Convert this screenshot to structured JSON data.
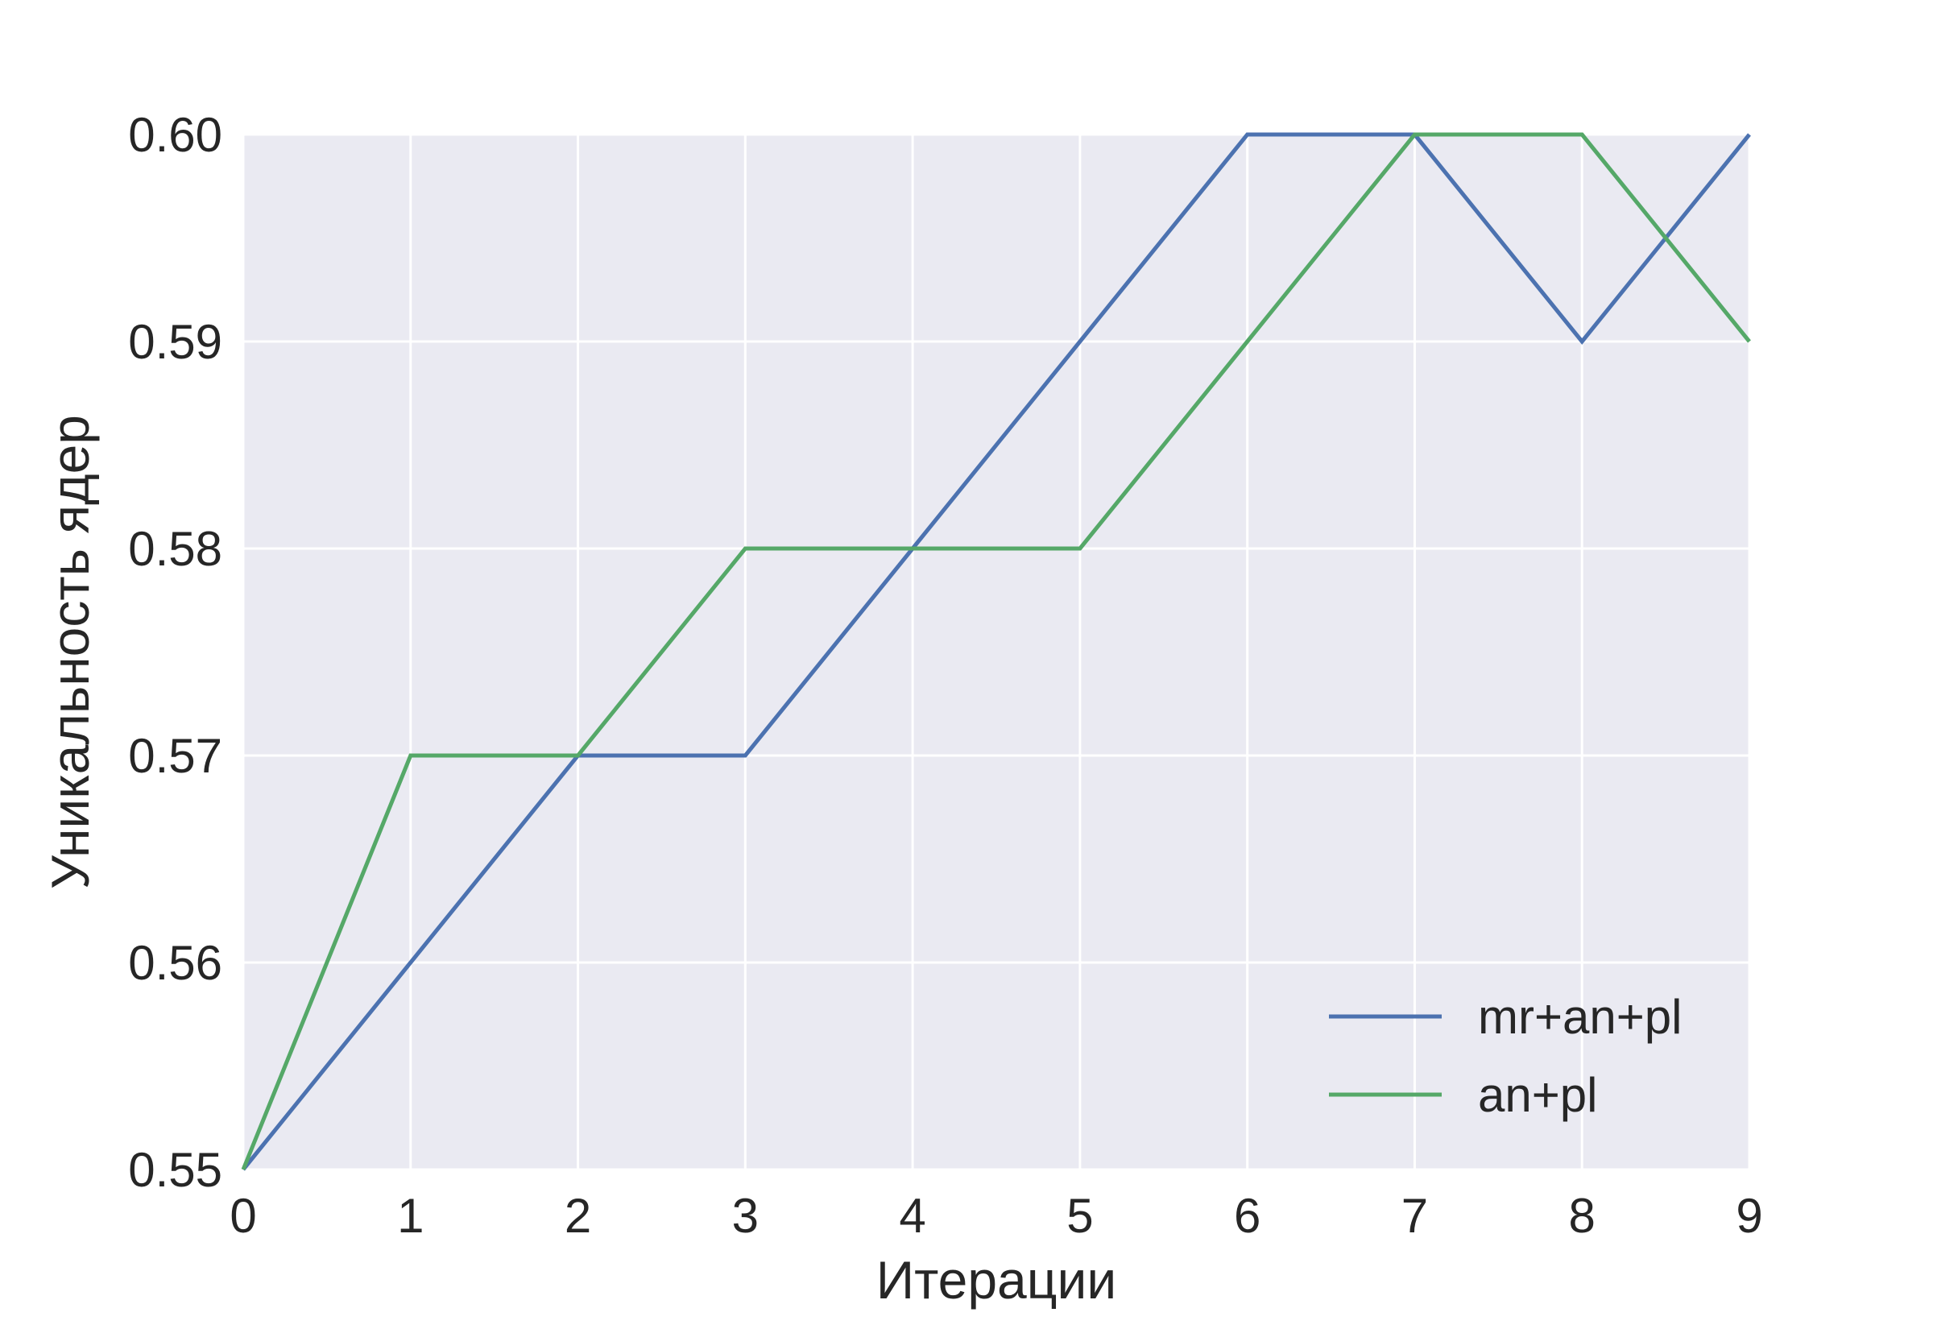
{
  "chart_data": {
    "type": "line",
    "title": "",
    "xlabel": "Итерации",
    "ylabel": "Уникальность ядер",
    "x": [
      0,
      1,
      2,
      3,
      4,
      5,
      6,
      7,
      8,
      9
    ],
    "xlim": [
      0,
      9
    ],
    "ylim": [
      0.55,
      0.6
    ],
    "xticks": [
      "0",
      "1",
      "2",
      "3",
      "4",
      "5",
      "6",
      "7",
      "8",
      "9"
    ],
    "yticks": [
      {
        "value": 0.55,
        "label": "0.55"
      },
      {
        "value": 0.56,
        "label": "0.56"
      },
      {
        "value": 0.57,
        "label": "0.57"
      },
      {
        "value": 0.58,
        "label": "0.58"
      },
      {
        "value": 0.59,
        "label": "0.59"
      },
      {
        "value": 0.6,
        "label": "0.60"
      }
    ],
    "grid": true,
    "legend_position": "lower-right",
    "background_color": "#EAEAF2",
    "grid_color": "#FFFFFF",
    "series": [
      {
        "name": "mr+an+pl",
        "color": "#4C72B0",
        "values": [
          0.55,
          0.56,
          0.57,
          0.57,
          0.58,
          0.59,
          0.6,
          0.6,
          0.59,
          0.6
        ]
      },
      {
        "name": "an+pl",
        "color": "#55A868",
        "values": [
          0.55,
          0.57,
          0.57,
          0.58,
          0.58,
          0.58,
          0.59,
          0.6,
          0.6,
          0.59
        ]
      }
    ]
  }
}
